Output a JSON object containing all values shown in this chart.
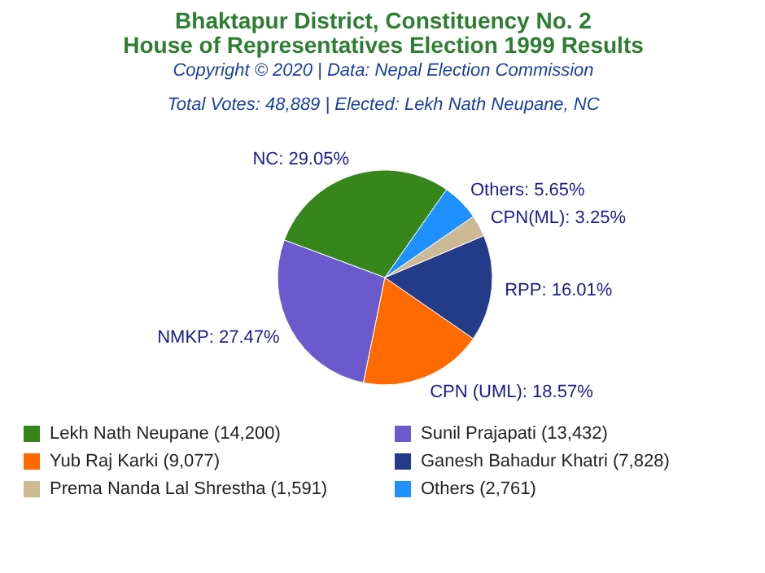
{
  "chart_data": {
    "type": "pie",
    "title": "Bhaktapur District, Constituency No. 2\nHouse of Representatives Election 1999 Results",
    "subtitle": "Copyright © 2020 | Data: Nepal Election Commission",
    "annotations": [
      "Total Votes: 48,889 | Elected: Lekh Nath Neupane, NC"
    ],
    "categories": [
      "Lekh Nath Neupane (14,200)",
      "Sunil Prajapati (13,432)",
      "Yub Raj Karki (9,077)",
      "Ganesh Bahadur Khatri (7,828)",
      "Prema Nanda Lal Shrestha (1,591)",
      "Others (2,761)"
    ],
    "values": [
      29.05,
      27.47,
      18.57,
      16.01,
      3.25,
      5.65
    ],
    "value_labels": [
      "NC: 29.05%",
      "NMKP: 27.47%",
      "CPN (UML): 18.57%",
      "RPP: 16.01%",
      "CPN(ML): 3.25%",
      "Others: 5.65%"
    ],
    "colors": [
      "#36861c",
      "#6a5acd",
      "#ff6a00",
      "#243b8a",
      "#cdb995",
      "#1e90ff"
    ],
    "legend": "bottom"
  }
}
